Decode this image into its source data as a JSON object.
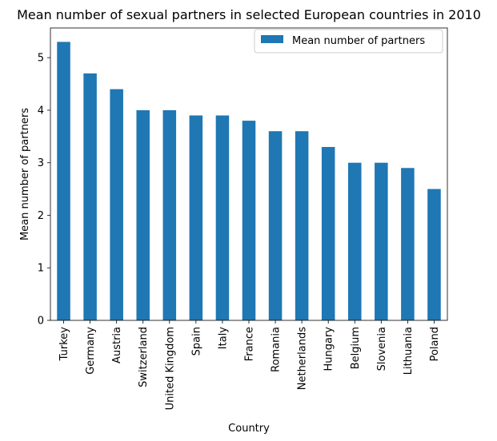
{
  "chart_data": {
    "type": "bar",
    "title": "Mean number of sexual partners in selected European countries in 2010",
    "xlabel": "Country",
    "ylabel": "Mean number of partners",
    "categories": [
      "Turkey",
      "Germany",
      "Austria",
      "Switzerland",
      "United Kingdom",
      "Spain",
      "Italy",
      "France",
      "Romania",
      "Netherlands",
      "Hungary",
      "Belgium",
      "Slovenia",
      "Lithuania",
      "Poland"
    ],
    "series": [
      {
        "name": "Mean number of partners",
        "values": [
          5.3,
          4.7,
          4.4,
          4.0,
          4.0,
          3.9,
          3.9,
          3.8,
          3.6,
          3.6,
          3.3,
          3.0,
          3.0,
          2.9,
          2.5
        ],
        "color": "#1f77b4"
      }
    ],
    "ylim": [
      0,
      5.565
    ],
    "yticks": [
      "0",
      "1",
      "2",
      "3",
      "4",
      "5"
    ],
    "grid": false,
    "legend_position": "top-right"
  }
}
